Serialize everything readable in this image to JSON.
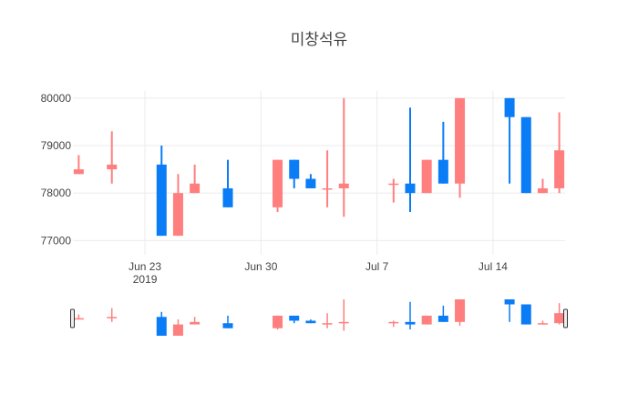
{
  "chart_data": {
    "type": "candlestick",
    "title": "미창석유",
    "colors": {
      "increasing": "#ff7f7f",
      "decreasing": "#0a7cf6",
      "grid": "#ebebeb",
      "text": "#444444"
    },
    "y_ticks": [
      "77000",
      "78000",
      "79000",
      "80000"
    ],
    "ylim": [
      76700,
      80150
    ],
    "x_ticks": [
      {
        "date": "2019-06-23",
        "label": "Jun 23",
        "sub": "2019"
      },
      {
        "date": "2019-06-30",
        "label": "Jun 30",
        "sub": ""
      },
      {
        "date": "2019-07-07",
        "label": "Jul 7",
        "sub": ""
      },
      {
        "date": "2019-07-14",
        "label": "Jul 14",
        "sub": ""
      }
    ],
    "xlim": [
      "2019-06-19",
      "2019-07-18"
    ],
    "candles": [
      {
        "date": "2019-06-19",
        "open": 78400,
        "high": 78800,
        "low": 78400,
        "close": 78500
      },
      {
        "date": "2019-06-21",
        "open": 78500,
        "high": 79300,
        "low": 78200,
        "close": 78600
      },
      {
        "date": "2019-06-24",
        "open": 78600,
        "high": 79000,
        "low": 77100,
        "close": 77100
      },
      {
        "date": "2019-06-25",
        "open": 77100,
        "high": 78400,
        "low": 77100,
        "close": 78000
      },
      {
        "date": "2019-06-26",
        "open": 78000,
        "high": 78600,
        "low": 78000,
        "close": 78200
      },
      {
        "date": "2019-06-28",
        "open": 78100,
        "high": 78700,
        "low": 77700,
        "close": 77700
      },
      {
        "date": "2019-07-01",
        "open": 77700,
        "high": 78700,
        "low": 77600,
        "close": 78700
      },
      {
        "date": "2019-07-02",
        "open": 78700,
        "high": 78700,
        "low": 78100,
        "close": 78300
      },
      {
        "date": "2019-07-03",
        "open": 78300,
        "high": 78400,
        "low": 78100,
        "close": 78100
      },
      {
        "date": "2019-07-04",
        "open": 78100,
        "high": 78900,
        "low": 77700,
        "close": 78100
      },
      {
        "date": "2019-07-05",
        "open": 78100,
        "high": 80000,
        "low": 77500,
        "close": 78200
      },
      {
        "date": "2019-07-08",
        "open": 78200,
        "high": 78300,
        "low": 77800,
        "close": 78200
      },
      {
        "date": "2019-07-09",
        "open": 78200,
        "high": 79800,
        "low": 77600,
        "close": 78000
      },
      {
        "date": "2019-07-10",
        "open": 78000,
        "high": 78700,
        "low": 78000,
        "close": 78700
      },
      {
        "date": "2019-07-11",
        "open": 78700,
        "high": 79500,
        "low": 78200,
        "close": 78200
      },
      {
        "date": "2019-07-12",
        "open": 78200,
        "high": 80000,
        "low": 77900,
        "close": 80000
      },
      {
        "date": "2019-07-15",
        "open": 80000,
        "high": 80000,
        "low": 78200,
        "close": 79600
      },
      {
        "date": "2019-07-16",
        "open": 79600,
        "high": 79600,
        "low": 78000,
        "close": 78000
      },
      {
        "date": "2019-07-17",
        "open": 78000,
        "high": 78300,
        "low": 78000,
        "close": 78100
      },
      {
        "date": "2019-07-18",
        "open": 78100,
        "high": 79700,
        "low": 78000,
        "close": 78900
      }
    ]
  }
}
